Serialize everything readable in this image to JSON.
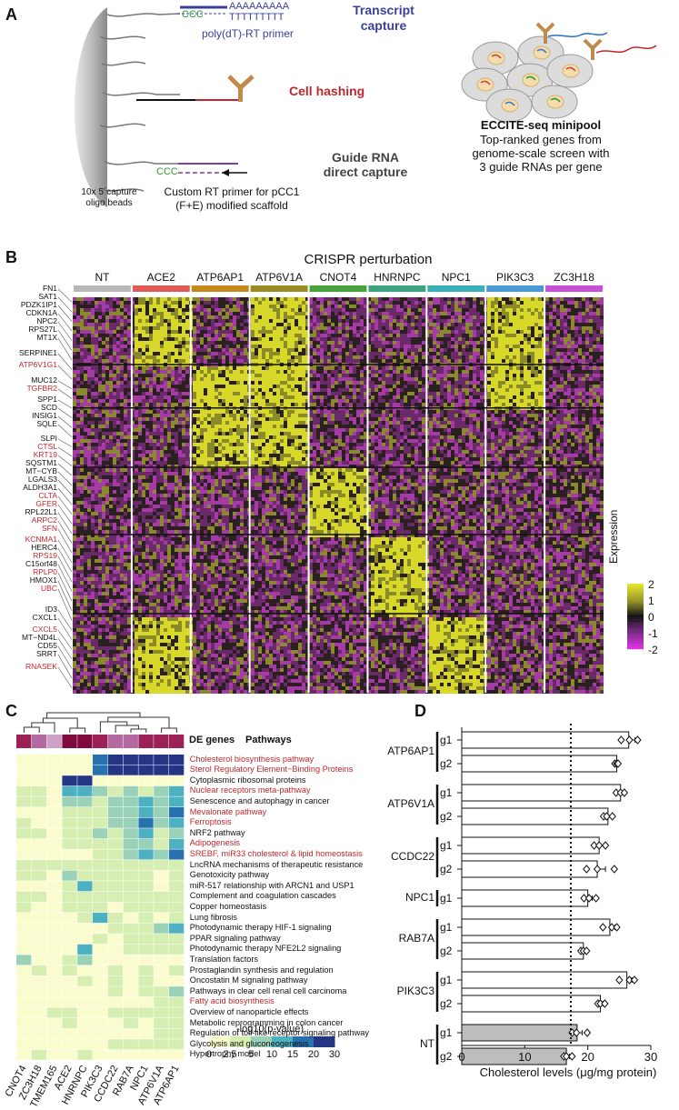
{
  "panels": {
    "a": "A",
    "b": "B",
    "c": "C",
    "d": "D"
  },
  "panel_a": {
    "ccc1": "CCC",
    "polyA": "AAAAAAAAA",
    "polyT": "TTTTTTTTT",
    "transcript_capture_1": "Transcript",
    "transcript_capture_2": "capture",
    "rt_primer": "poly(dT)-RT primer",
    "cell_hashing": "Cell hashing",
    "guide_capture_1": "Guide RNA",
    "guide_capture_2": "direct capture",
    "ccc2": "CCC",
    "custom_primer_1": "Custom RT primer for pCC1",
    "custom_primer_2": "(F+E) modified scaffold",
    "beads_1": "10x 5´capture",
    "beads_2": "oligo beads",
    "minipool_title": "ECCITE-seq minipool",
    "minipool_1": "Top-ranked genes from",
    "minipool_2": "genome-scale screen with",
    "minipool_3": "3 guide RNAs per gene",
    "colors": {
      "blue": "#3b3f9a",
      "red": "#c0282d",
      "green": "#2e9b3a",
      "purple": "#7b3fa0"
    }
  },
  "panel_b": {
    "title": "CRISPR perturbation",
    "groups": [
      {
        "name": "NT",
        "color": "#b8b8b8"
      },
      {
        "name": "ACE2",
        "color": "#e05b58"
      },
      {
        "name": "ATP6AP1",
        "color": "#c78a1a"
      },
      {
        "name": "ATP6V1A",
        "color": "#9c8a22"
      },
      {
        "name": "CNOT4",
        "color": "#47a43b"
      },
      {
        "name": "HNRNPC",
        "color": "#3aa57d"
      },
      {
        "name": "NPC1",
        "color": "#3ab0b8"
      },
      {
        "name": "PIK3C3",
        "color": "#4a9ad8"
      },
      {
        "name": "ZC3H18",
        "color": "#c94ed8"
      }
    ],
    "genes": [
      {
        "n": "FN1",
        "red": false
      },
      {
        "n": "SAT1",
        "red": false
      },
      {
        "n": "PDZK1IP1",
        "red": false
      },
      {
        "n": "CDKN1A",
        "red": false
      },
      {
        "n": "NPC2",
        "red": false
      },
      {
        "n": "RPS27L",
        "red": false
      },
      {
        "n": "MT1X",
        "red": false
      },
      {
        "n": "SERPINE1",
        "red": false
      },
      {
        "n": "ATP6V1G1",
        "red": true
      },
      {
        "n": "MUC12",
        "red": false
      },
      {
        "n": "TGFBR2",
        "red": true
      },
      {
        "n": "SPP1",
        "red": false
      },
      {
        "n": "SCD",
        "red": false
      },
      {
        "n": "INSIG1",
        "red": false
      },
      {
        "n": "SQLE",
        "red": false
      },
      {
        "n": "SLPI",
        "red": false
      },
      {
        "n": "CTSL",
        "red": true
      },
      {
        "n": "KRT19",
        "red": true
      },
      {
        "n": "SQSTM1",
        "red": false
      },
      {
        "n": "MT−CYB",
        "red": false
      },
      {
        "n": "LGALS3",
        "red": false
      },
      {
        "n": "ALDH3A1",
        "red": false
      },
      {
        "n": "CLTA",
        "red": true
      },
      {
        "n": "GFER",
        "red": true
      },
      {
        "n": "RPL22L1",
        "red": false
      },
      {
        "n": "ARPC2",
        "red": true
      },
      {
        "n": "SFN",
        "red": true
      },
      {
        "n": "KCNMA1",
        "red": true
      },
      {
        "n": "HERC4",
        "red": false
      },
      {
        "n": "RPS19",
        "red": true
      },
      {
        "n": "C15orf48",
        "red": false
      },
      {
        "n": "RPLP0",
        "red": true
      },
      {
        "n": "HMOX1",
        "red": false
      },
      {
        "n": "UBC",
        "red": true
      },
      {
        "n": "ID3",
        "red": false
      },
      {
        "n": "CXCL1",
        "red": false
      },
      {
        "n": "CXCL5",
        "red": true
      },
      {
        "n": "MT−ND4L",
        "red": false
      },
      {
        "n": "CD55",
        "red": false
      },
      {
        "n": "SRRT",
        "red": false
      },
      {
        "n": "RNASEK",
        "red": true
      }
    ],
    "legend_title": "Expression",
    "legend_ticks": [
      "2",
      "1",
      "0",
      "-1",
      "-2"
    ]
  },
  "panel_c": {
    "header_de": "DE genes",
    "header_pathways": "Pathways",
    "columns": [
      "CNOT4",
      "ZC3H18",
      "TMEM165",
      "ACE2",
      "HNRNPC",
      "PIK3C3",
      "CCDC22",
      "RAB7A",
      "NPC1",
      "ATP6V1A",
      "ATP6AP1"
    ],
    "pathways": [
      {
        "n": "Cholesterol biosynthesis pathway",
        "red": true
      },
      {
        "n": "Sterol Regulatory Element−Binding Proteins",
        "red": true
      },
      {
        "n": "Cytoplasmic ribosomal proteins",
        "red": false
      },
      {
        "n": "Nuclear receptors meta-pathway",
        "red": true
      },
      {
        "n": "Senescence and autophagy in cancer",
        "red": false
      },
      {
        "n": "Mevalonate pathway",
        "red": true
      },
      {
        "n": "Ferroptosis",
        "red": true
      },
      {
        "n": "NRF2 pathway",
        "red": false
      },
      {
        "n": "Adipogenesis",
        "red": true
      },
      {
        "n": "SREBF, miR33 cholesterol & lipid homeostasis",
        "red": true
      },
      {
        "n": "LncRNA mechanisms of therapeutic resistance",
        "red": false
      },
      {
        "n": "Genotoxicity pathway",
        "red": false
      },
      {
        "n": "miR-517 relationship with ARCN1 and USP1",
        "red": false
      },
      {
        "n": "Complement and coagulation cascades",
        "red": false
      },
      {
        "n": "Copper homeostasis",
        "red": false
      },
      {
        "n": "Lung fibrosis",
        "red": false
      },
      {
        "n": "Photodynamic therapy HIF-1 signaling",
        "red": false
      },
      {
        "n": "PPAR signaling pathway",
        "red": false
      },
      {
        "n": "Photodynamic therapy NFE2L2 signaling",
        "red": false
      },
      {
        "n": "Translation factors",
        "red": false
      },
      {
        "n": "Prostaglandin synthesis and regulation",
        "red": false
      },
      {
        "n": "Oncostatin M signaling pathway",
        "red": false
      },
      {
        "n": "Pathways in clear cell renal cell carcinoma",
        "red": false
      },
      {
        "n": "Fatty acid biosynthesis",
        "red": true
      },
      {
        "n": "Overview of nanoparticle effects",
        "red": false
      },
      {
        "n": "Metabolic reprogramming in colon cancer",
        "red": false
      },
      {
        "n": "Regulation of toll-like receptor signaling pathway",
        "red": false
      },
      {
        "n": "Glycolysis and gluconeogenesis",
        "red": false
      },
      {
        "n": "Hypertrophy model",
        "red": false
      }
    ],
    "de_strip": [
      3,
      2,
      1,
      4,
      4,
      3,
      2,
      2,
      3,
      3,
      3
    ],
    "matrix": [
      [
        0,
        0,
        0,
        0,
        0,
        4,
        5,
        5,
        5,
        5,
        5
      ],
      [
        0,
        0,
        0,
        0,
        0,
        4,
        5,
        5,
        5,
        5,
        5
      ],
      [
        0,
        0,
        0,
        5,
        5,
        0,
        0,
        0,
        0,
        0,
        0
      ],
      [
        1,
        1,
        0,
        3,
        3,
        2,
        1,
        2,
        1,
        2,
        3
      ],
      [
        1,
        1,
        0,
        2,
        2,
        1,
        2,
        2,
        3,
        2,
        3
      ],
      [
        0,
        0,
        0,
        1,
        1,
        1,
        2,
        2,
        3,
        2,
        4
      ],
      [
        1,
        0,
        0,
        1,
        1,
        1,
        2,
        2,
        4,
        2,
        3
      ],
      [
        1,
        1,
        0,
        1,
        1,
        2,
        1,
        2,
        3,
        1,
        2
      ],
      [
        0,
        0,
        0,
        1,
        1,
        1,
        1,
        2,
        2,
        1,
        3
      ],
      [
        0,
        0,
        0,
        0,
        0,
        1,
        1,
        2,
        3,
        2,
        4
      ],
      [
        1,
        1,
        1,
        1,
        1,
        1,
        1,
        1,
        1,
        1,
        1
      ],
      [
        1,
        1,
        0,
        2,
        1,
        1,
        1,
        1,
        1,
        0,
        1
      ],
      [
        0,
        0,
        0,
        1,
        3,
        1,
        1,
        1,
        1,
        0,
        1
      ],
      [
        1,
        1,
        0,
        1,
        1,
        1,
        1,
        1,
        1,
        1,
        1
      ],
      [
        1,
        0,
        0,
        1,
        1,
        1,
        0,
        1,
        1,
        1,
        1
      ],
      [
        0,
        0,
        0,
        0,
        1,
        3,
        1,
        0,
        1,
        0,
        1
      ],
      [
        0,
        0,
        0,
        0,
        0,
        0,
        1,
        1,
        1,
        2,
        3
      ],
      [
        0,
        0,
        0,
        0,
        0,
        1,
        0,
        1,
        1,
        1,
        1
      ],
      [
        0,
        0,
        0,
        0,
        3,
        0,
        0,
        1,
        1,
        1,
        1
      ],
      [
        2,
        0,
        0,
        1,
        2,
        0,
        0,
        0,
        0,
        0,
        0
      ],
      [
        0,
        1,
        0,
        1,
        0,
        0,
        1,
        0,
        1,
        0,
        1
      ],
      [
        0,
        0,
        0,
        0,
        1,
        0,
        1,
        0,
        1,
        0,
        0
      ],
      [
        0,
        0,
        0,
        0,
        0,
        0,
        1,
        0,
        1,
        1,
        2
      ],
      [
        0,
        0,
        0,
        0,
        0,
        0,
        0,
        0,
        0,
        1,
        1
      ],
      [
        0,
        0,
        1,
        1,
        0,
        0,
        1,
        1,
        1,
        1,
        1
      ],
      [
        0,
        0,
        0,
        1,
        0,
        0,
        0,
        1,
        0,
        1,
        1
      ],
      [
        0,
        0,
        0,
        0,
        0,
        0,
        0,
        0,
        0,
        1,
        1
      ],
      [
        0,
        0,
        0,
        0,
        0,
        0,
        1,
        1,
        1,
        1,
        1
      ],
      [
        0,
        1,
        0,
        0,
        1,
        0,
        0,
        0,
        0,
        0,
        0
      ]
    ],
    "scale_title": "-log10(p-value)",
    "scale_ticks": [
      "0",
      "2.5",
      "5",
      "10",
      "15",
      "20",
      "30"
    ],
    "colors": [
      "#fbfccd",
      "#d7eeb2",
      "#99d2b8",
      "#4eb1c1",
      "#2771af",
      "#243584"
    ],
    "strip_colors": [
      "#e7dbe9",
      "#cda1c5",
      "#b36aa0",
      "#9b2157",
      "#7f0b3e"
    ]
  },
  "chart_data": {
    "type": "bar",
    "xlabel": "Cholesterol levels (μg/mg protein)",
    "xlim": [
      0,
      30
    ],
    "xticks": [
      0,
      10,
      20,
      30
    ],
    "reference_line": 17.3,
    "groups": [
      {
        "gene": "ATP6AP1",
        "bars": [
          {
            "label": "g1",
            "value": 26.5,
            "err": 1.0,
            "points": [
              25.3,
              26.6,
              27.9
            ]
          },
          {
            "label": "g2",
            "value": 24.6,
            "err": 0.3,
            "points": [
              24.3,
              24.6,
              24.8
            ]
          }
        ]
      },
      {
        "gene": "ATP6V1A",
        "bars": [
          {
            "label": "g1",
            "value": 25.2,
            "err": 0.6,
            "points": [
              24.5,
              25.2,
              25.8
            ]
          },
          {
            "label": "g2",
            "value": 23.2,
            "err": 0.7,
            "points": [
              22.5,
              23.0,
              23.9
            ]
          }
        ]
      },
      {
        "gene": "CCDC22",
        "bars": [
          {
            "label": "g1",
            "value": 21.8,
            "err": 0.8,
            "points": [
              21.0,
              21.8,
              22.8
            ]
          },
          {
            "label": "g2",
            "value": 21.5,
            "err": 1.3,
            "points": [
              19.8,
              21.5,
              24.2
            ]
          }
        ]
      },
      {
        "gene": "NPC1",
        "bars": [
          {
            "label": "g1",
            "value": 20.0,
            "err": 0.7,
            "points": [
              19.4,
              20.2,
              21.3
            ]
          }
        ]
      },
      {
        "gene": "RAB7A",
        "bars": [
          {
            "label": "g1",
            "value": 23.5,
            "err": 0.8,
            "points": [
              22.4,
              23.8,
              24.6
            ]
          },
          {
            "label": "g2",
            "value": 19.3,
            "err": 0.4,
            "points": [
              18.9,
              19.3,
              19.8
            ]
          }
        ]
      },
      {
        "gene": "PIK3C3",
        "bars": [
          {
            "label": "g1",
            "value": 26.2,
            "err": 0.8,
            "points": [
              25.0,
              26.6,
              27.4
            ]
          },
          {
            "label": "g2",
            "value": 22.0,
            "err": 0.4,
            "points": [
              21.6,
              22.0,
              22.7
            ]
          }
        ]
      },
      {
        "gene": "NT",
        "bars": [
          {
            "label": "g1",
            "value": 18.3,
            "err": 0.8,
            "points": [
              17.5,
              18.2,
              19.9
            ]
          },
          {
            "label": "g2",
            "value": 16.6,
            "err": 0.5,
            "points": [
              16.2,
              16.6,
              17.5
            ]
          }
        ]
      }
    ],
    "colors": {
      "targeting": "#ffffff",
      "control": "#bdbdbd"
    }
  }
}
